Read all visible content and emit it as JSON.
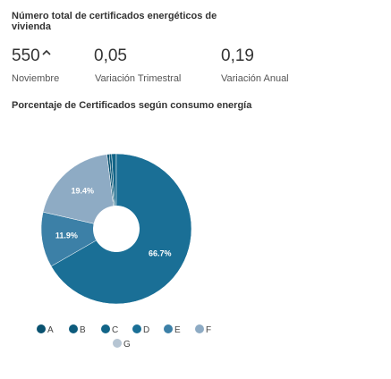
{
  "header": {
    "title": "Número total de certificados energéticos de vivienda"
  },
  "kpis": [
    {
      "value": "550",
      "label": "Noviembre"
    },
    {
      "value": "0,05",
      "label": "Variación Trimestral"
    },
    {
      "value": "0,19",
      "label": "Variación Anual"
    }
  ],
  "chart_data": {
    "type": "pie",
    "title": "Porcentaje de Certificados según consumo energía",
    "categories": [
      "A",
      "B",
      "C",
      "D",
      "E",
      "F",
      "G"
    ],
    "values": [
      0.5,
      0.5,
      1.0,
      66.7,
      11.9,
      19.4,
      0
    ],
    "value_labels": [
      null,
      null,
      null,
      "66.7%",
      "11.9%",
      "19.4%",
      null
    ],
    "colors": [
      "#0a5270",
      "#0d5b7c",
      "#126588",
      "#1a6f96",
      "#3c80a7",
      "#8eabc4",
      "#b6c5d3"
    ],
    "legend": "bottom"
  }
}
